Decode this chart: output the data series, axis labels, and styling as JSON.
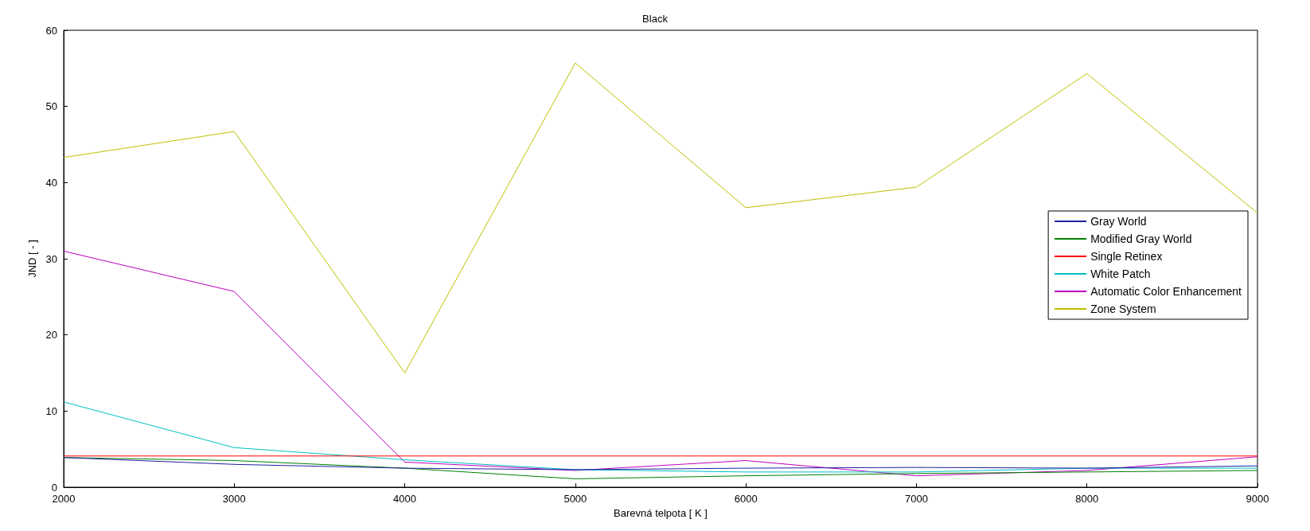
{
  "chart_data": {
    "type": "line",
    "title": "Black",
    "xlabel": "Barevná telpota [ K ]",
    "ylabel": "JND [ - ]",
    "x": [
      2000,
      3000,
      4000,
      5000,
      6000,
      7000,
      8000,
      9000
    ],
    "xlim": [
      2000,
      9000
    ],
    "xticks": [
      2000,
      3000,
      4000,
      5000,
      6000,
      7000,
      8000,
      9000
    ],
    "ylim": [
      0,
      60
    ],
    "yticks": [
      0,
      10,
      20,
      30,
      40,
      50,
      60
    ],
    "grid": false,
    "legend": "right",
    "marker": "none",
    "line_style": "solid",
    "series": [
      {
        "name": "Gray World",
        "color": "#2020a0",
        "values": [
          3.9,
          3.0,
          2.5,
          2.3,
          2.5,
          2.6,
          2.5,
          2.8
        ]
      },
      {
        "name": "Modified Gray World",
        "color": "#008000",
        "values": [
          3.9,
          3.5,
          2.5,
          1.1,
          1.5,
          1.8,
          2.0,
          2.2
        ]
      },
      {
        "name": "Single Retinex",
        "color": "#ff0000",
        "values": [
          4.1,
          4.1,
          4.1,
          4.1,
          4.1,
          4.1,
          4.1,
          4.1
        ]
      },
      {
        "name": "White Patch",
        "color": "#00bfbf",
        "values": [
          11.2,
          5.2,
          3.6,
          2.3,
          2.0,
          2.0,
          2.5,
          2.5
        ]
      },
      {
        "name": "Automatic Color Enhancement",
        "color": "#bf00bf",
        "values": [
          31,
          25.7,
          3.3,
          2.2,
          3.5,
          1.5,
          2.2,
          4.0
        ]
      },
      {
        "name": "Zone System",
        "color": "#bfbf00",
        "values": [
          43.3,
          46.7,
          15,
          55.7,
          36.7,
          39.4,
          54.3,
          36
        ]
      }
    ]
  }
}
